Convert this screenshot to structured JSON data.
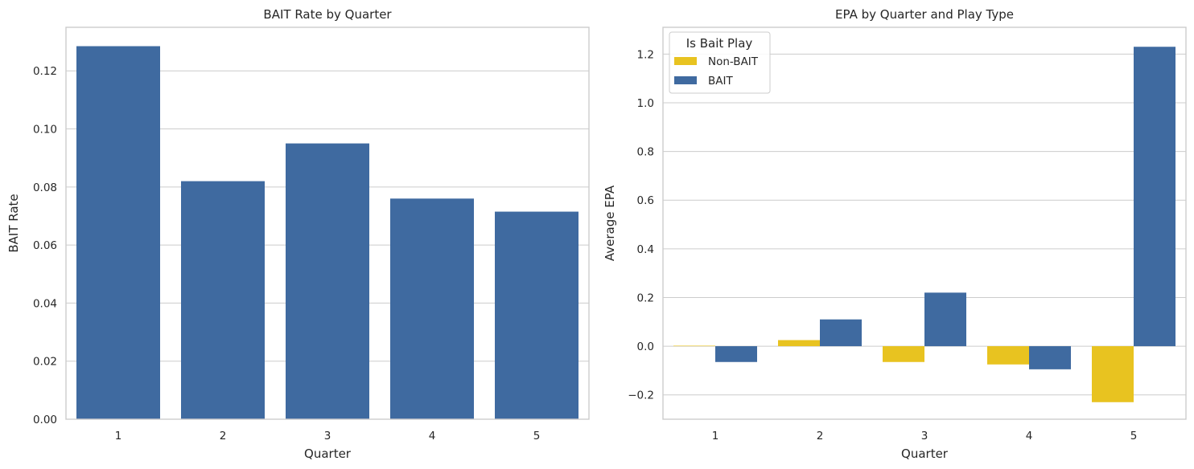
{
  "colors": {
    "bait": "#3f6aa0",
    "non_bait": "#e8c320",
    "grid": "#cccccc",
    "text": "#262626"
  },
  "chart_data": [
    {
      "type": "bar",
      "title": "BAIT Rate by Quarter",
      "xlabel": "Quarter",
      "ylabel": "BAIT Rate",
      "categories": [
        "1",
        "2",
        "3",
        "4",
        "5"
      ],
      "values": [
        0.1285,
        0.082,
        0.095,
        0.076,
        0.0715
      ],
      "ylim": [
        0,
        0.135
      ],
      "yticks": [
        "0.00",
        "0.02",
        "0.04",
        "0.06",
        "0.08",
        "0.10",
        "0.12"
      ],
      "grid": true,
      "color": "#3f6aa0"
    },
    {
      "type": "bar",
      "title": "EPA by Quarter and Play Type",
      "xlabel": "Quarter",
      "ylabel": "Average EPA",
      "categories": [
        "1",
        "2",
        "3",
        "4",
        "5"
      ],
      "series": [
        {
          "name": "Non-BAIT",
          "color": "#e8c320",
          "values": [
            0.002,
            0.025,
            -0.065,
            -0.075,
            -0.23
          ]
        },
        {
          "name": "BAIT",
          "color": "#3f6aa0",
          "values": [
            -0.065,
            0.11,
            0.22,
            -0.095,
            1.23
          ]
        }
      ],
      "ylim": [
        -0.3,
        1.31
      ],
      "yticks": [
        "−0.2",
        "0.0",
        "0.2",
        "0.4",
        "0.6",
        "0.8",
        "1.0",
        "1.2"
      ],
      "grid": true,
      "legend": {
        "title": "Is Bait Play",
        "placement": "top-left"
      }
    }
  ]
}
